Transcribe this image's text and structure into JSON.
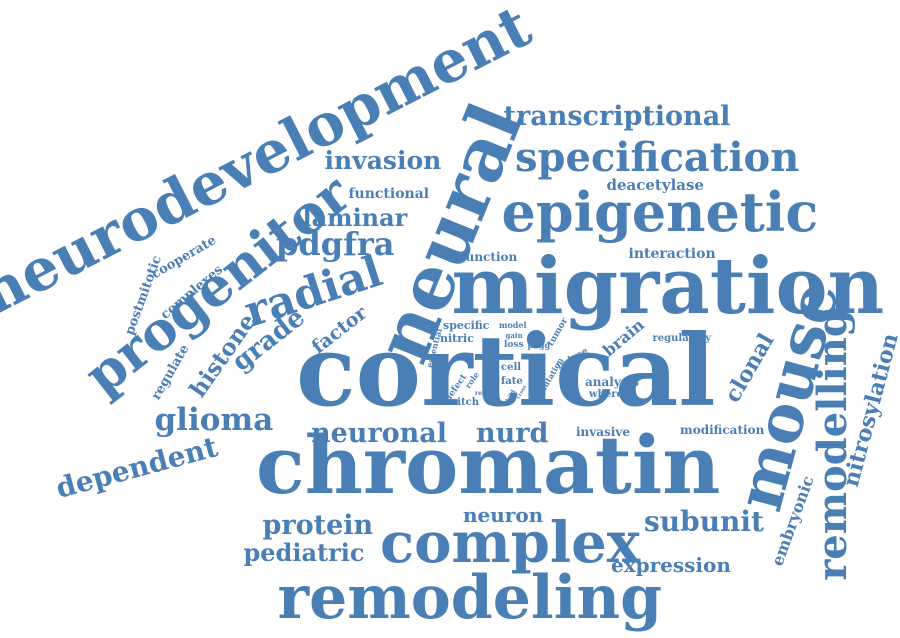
{
  "colors": {
    "word": "#4a7fb5",
    "background": "#ffffff"
  },
  "words": [
    {
      "text": "neurodevelopment",
      "size": "huge"
    },
    {
      "text": "transcriptional",
      "size": "medium"
    },
    {
      "text": "specification",
      "size": "large"
    },
    {
      "text": "invasion",
      "size": "medium"
    },
    {
      "text": "neural",
      "size": "huge"
    },
    {
      "text": "epigenetic",
      "size": "huge"
    },
    {
      "text": "functional",
      "size": "small"
    },
    {
      "text": "deacetylase",
      "size": "small"
    },
    {
      "text": "progenitor",
      "size": "huge"
    },
    {
      "text": "laminar",
      "size": "medium"
    },
    {
      "text": "pdgfra",
      "size": "large"
    },
    {
      "text": "function",
      "size": "small"
    },
    {
      "text": "interaction",
      "size": "small"
    },
    {
      "text": "migration",
      "size": "huge"
    },
    {
      "text": "cooperate",
      "size": "small"
    },
    {
      "text": "postmitotic",
      "size": "small"
    },
    {
      "text": "complexes",
      "size": "small"
    },
    {
      "text": "radial",
      "size": "large"
    },
    {
      "text": "regulate",
      "size": "small"
    },
    {
      "text": "histone",
      "size": "medium"
    },
    {
      "text": "grade",
      "size": "medium"
    },
    {
      "text": "factor",
      "size": "small"
    },
    {
      "text": "specific",
      "size": "tiny"
    },
    {
      "text": "nitric",
      "size": "tiny"
    },
    {
      "text": "model",
      "size": "tiny"
    },
    {
      "text": "gain",
      "size": "tiny"
    },
    {
      "text": "loss",
      "size": "tiny"
    },
    {
      "text": "phgg",
      "size": "tiny"
    },
    {
      "text": "essential",
      "size": "tiny"
    },
    {
      "text": "tumor",
      "size": "tiny"
    },
    {
      "text": "brain",
      "size": "small"
    },
    {
      "text": "regulatory",
      "size": "tiny"
    },
    {
      "text": "mouse",
      "size": "huge"
    },
    {
      "text": "remodelling",
      "size": "large"
    },
    {
      "text": "nitrosylation",
      "size": "medium"
    },
    {
      "text": "clonal",
      "size": "medium"
    },
    {
      "text": "cortical",
      "size": "huge"
    },
    {
      "text": "cell",
      "size": "tiny"
    },
    {
      "text": "fate",
      "size": "tiny"
    },
    {
      "text": "defect",
      "size": "tiny"
    },
    {
      "text": "role",
      "size": "tiny"
    },
    {
      "text": "result",
      "size": "tiny"
    },
    {
      "text": "switch",
      "size": "tiny"
    },
    {
      "text": "child",
      "size": "tiny"
    },
    {
      "text": "cross",
      "size": "tiny"
    },
    {
      "text": "mutation",
      "size": "tiny"
    },
    {
      "text": "induce",
      "size": "tiny"
    },
    {
      "text": "analysis",
      "size": "tiny"
    },
    {
      "text": "whereas",
      "size": "tiny"
    },
    {
      "text": "glioma",
      "size": "medium"
    },
    {
      "text": "neuronal",
      "size": "medium"
    },
    {
      "text": "nurd",
      "size": "medium"
    },
    {
      "text": "invasive",
      "size": "tiny"
    },
    {
      "text": "modification",
      "size": "tiny"
    },
    {
      "text": "dependent",
      "size": "medium"
    },
    {
      "text": "chromatin",
      "size": "huge"
    },
    {
      "text": "embryonic",
      "size": "small"
    },
    {
      "text": "protein",
      "size": "medium"
    },
    {
      "text": "neuron",
      "size": "small"
    },
    {
      "text": "subunit",
      "size": "medium"
    },
    {
      "text": "complex",
      "size": "large"
    },
    {
      "text": "pediatric",
      "size": "medium"
    },
    {
      "text": "expression",
      "size": "small"
    },
    {
      "text": "remodeling",
      "size": "huge"
    }
  ]
}
